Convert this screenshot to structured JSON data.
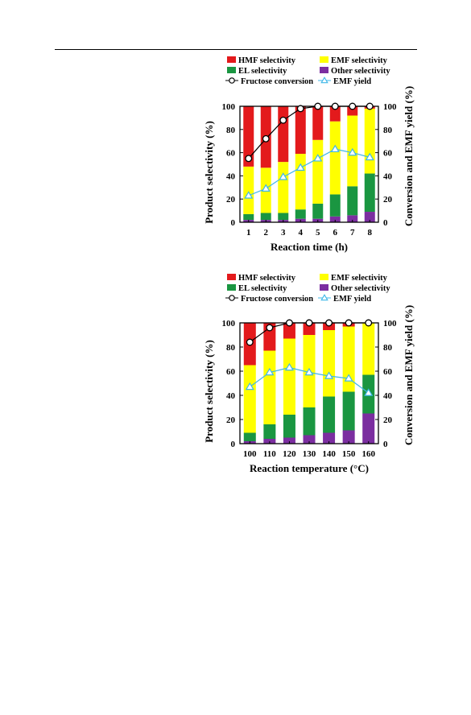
{
  "colors": {
    "hmf": "#e31a1c",
    "emf": "#ffff00",
    "el": "#1a9641",
    "other": "#7b2ea0",
    "conversion_marker": "#ffffff",
    "conversion_line": "#000000",
    "yield": "#3fb7e8"
  },
  "chart_data": [
    {
      "type": "bar",
      "stacked": true,
      "xlabel": "Reaction time (h)",
      "ylabel": "Product selectivity (%)",
      "y2label": "Conversion and EMF yield (%)",
      "ylim": [
        0,
        100
      ],
      "y2lim": [
        0,
        100
      ],
      "yticks": [
        "0",
        "20",
        "40",
        "60",
        "80",
        "100"
      ],
      "categories": [
        "1",
        "2",
        "3",
        "4",
        "5",
        "6",
        "7",
        "8"
      ],
      "series": [
        {
          "name": "Other selectivity",
          "values": [
            2,
            2,
            2,
            3,
            3,
            5,
            6,
            9
          ]
        },
        {
          "name": "EL selectivity",
          "values": [
            5,
            6,
            6,
            8,
            13,
            19,
            25,
            33
          ]
        },
        {
          "name": "EMF selectivity",
          "values": [
            41,
            39,
            44,
            48,
            55,
            63,
            61,
            56
          ]
        },
        {
          "name": "HMF selectivity",
          "values": [
            52,
            53,
            48,
            41,
            29,
            13,
            8,
            2
          ]
        }
      ],
      "lines": [
        {
          "name": "Fructose conversion",
          "axis": "right",
          "values": [
            55,
            72,
            88,
            98,
            100,
            100,
            100,
            100
          ]
        },
        {
          "name": "EMF yield",
          "axis": "right",
          "values": [
            23,
            29,
            39,
            47,
            55,
            63,
            60,
            56
          ]
        }
      ],
      "legend": [
        "HMF selectivity",
        "EMF selectivity",
        "EL selectivity",
        "Other selectivity",
        "Fructose conversion",
        "EMF yield"
      ],
      "legend_position": "top"
    },
    {
      "type": "bar",
      "stacked": true,
      "xlabel": "Reaction temperature (°C)",
      "ylabel": "Product selectivity (%)",
      "y2label": "Conversion and EMF yield (%)",
      "ylim": [
        0,
        100
      ],
      "y2lim": [
        0,
        100
      ],
      "yticks": [
        "0",
        "20",
        "40",
        "60",
        "80",
        "100"
      ],
      "categories": [
        "100",
        "110",
        "120",
        "130",
        "140",
        "150",
        "160"
      ],
      "series": [
        {
          "name": "Other selectivity",
          "values": [
            2,
            4,
            5,
            7,
            9,
            11,
            25
          ]
        },
        {
          "name": "EL selectivity",
          "values": [
            7,
            12,
            19,
            23,
            30,
            32,
            32
          ]
        },
        {
          "name": "EMF selectivity",
          "values": [
            56,
            61,
            63,
            60,
            55,
            54,
            43
          ]
        },
        {
          "name": "HMF selectivity",
          "values": [
            35,
            23,
            13,
            10,
            6,
            3,
            0
          ]
        }
      ],
      "lines": [
        {
          "name": "Fructose conversion",
          "axis": "right",
          "values": [
            84,
            96,
            100,
            100,
            100,
            100,
            100
          ]
        },
        {
          "name": "EMF yield",
          "axis": "right",
          "values": [
            47,
            59,
            63,
            59,
            56,
            54,
            42
          ]
        }
      ],
      "legend": [
        "HMF selectivity",
        "EMF selectivity",
        "EL selectivity",
        "Other selectivity",
        "Fructose conversion",
        "EMF yield"
      ],
      "legend_position": "top"
    }
  ]
}
